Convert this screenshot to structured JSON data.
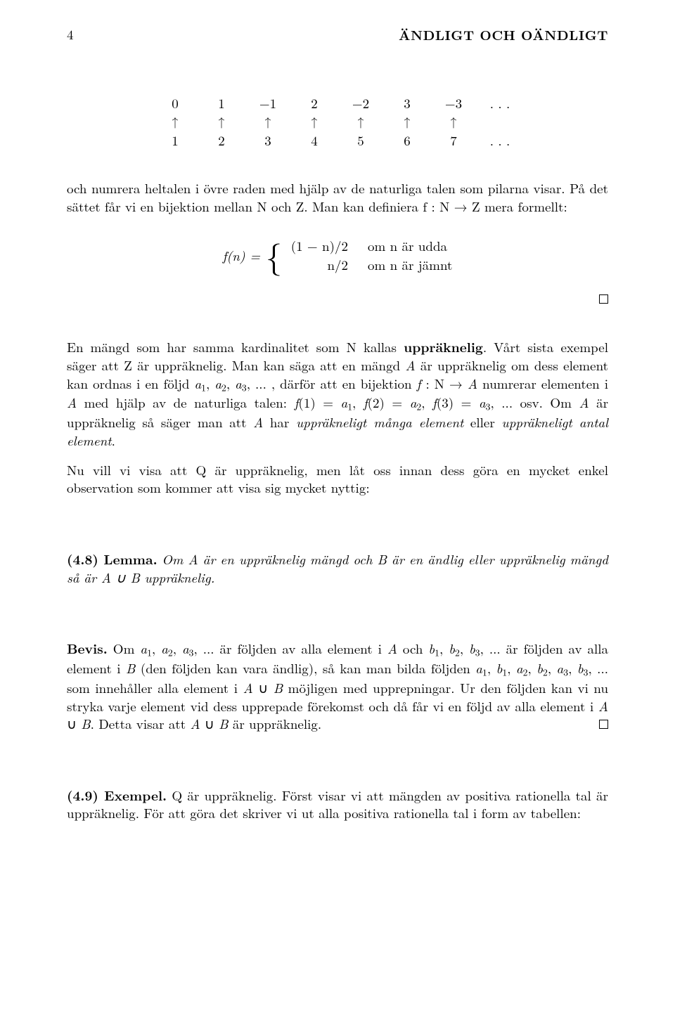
{
  "header": {
    "page_number": "4",
    "running_title": "ÄNDLIGT OCH OÄNDLIGT"
  },
  "arrow_table": {
    "top": [
      "0",
      "1",
      "−1",
      "2",
      "−2",
      "3",
      "−3",
      ". . ."
    ],
    "mid": [
      "↑",
      "↑",
      "↑",
      "↑",
      "↑",
      "↑",
      "↑",
      ""
    ],
    "bottom": [
      "1",
      "2",
      "3",
      "4",
      "5",
      "6",
      "7",
      ". . ."
    ]
  },
  "text": {
    "p1": "och numrera heltalen i övre raden med hjälp av de naturliga talen som pilarna visar. På det sättet får vi en bijektion mellan N och Z. Man kan definiera f : N → Z mera formellt:",
    "fn_lhs": "f(n) =",
    "case1_expr": "(1 − n)/2",
    "case1_cond": "om n är udda",
    "case2_expr": "n/2",
    "case2_cond": "om n är jämnt",
    "p2": "En mängd som har samma kardinalitet som N kallas uppräknelig. Vårt sista exempel säger att Z är uppräknelig. Man kan säga att en mängd A är uppräknelig om dess element kan ordnas i en följd a₁, a₂, a₃, ... , därför att en bijektion f : N → A numrerar elementen i A med hjälp av de naturliga talen: f(1) = a₁, f(2) = a₂, f(3) = a₃, ... osv. Om A är uppräknelig så säger man att A har uppräkneligt många element eller uppräkneligt antal element.",
    "p3": "Nu vill vi visa att Q är uppräknelig, men låt oss innan dess göra en mycket enkel observation som kommer att visa sig mycket nyttig:",
    "lemma_label": "(4.8) Lemma.",
    "lemma_body": "Om A är en uppräknelig mängd och B är en ändlig eller uppräknelig mängd så är A ∪ B uppräknelig.",
    "bevis_label": "Bevis.",
    "bevis_body": "Om a₁, a₂, a₃, ... är följden av alla element i A och b₁, b₂, b₃, ... är följden av alla element i B (den följden kan vara ändlig), så kan man bilda följden a₁, b₁, a₂, b₂, a₃, b₃, ... som innehåller alla element i A ∪ B möjligen med upprepningar. Ur den följden kan vi nu stryka varje element vid dess upprepade förekomst och då får vi en följd av alla element i A ∪ B. Detta visar att A ∪ B är uppräknelig.",
    "ex_label": "(4.9) Exempel.",
    "ex_body": "Q är uppräknelig. Först visar vi att mängden av positiva rationella tal är uppräknelig. För att göra det skriver vi ut alla positiva rationella tal i form av tabellen:"
  }
}
